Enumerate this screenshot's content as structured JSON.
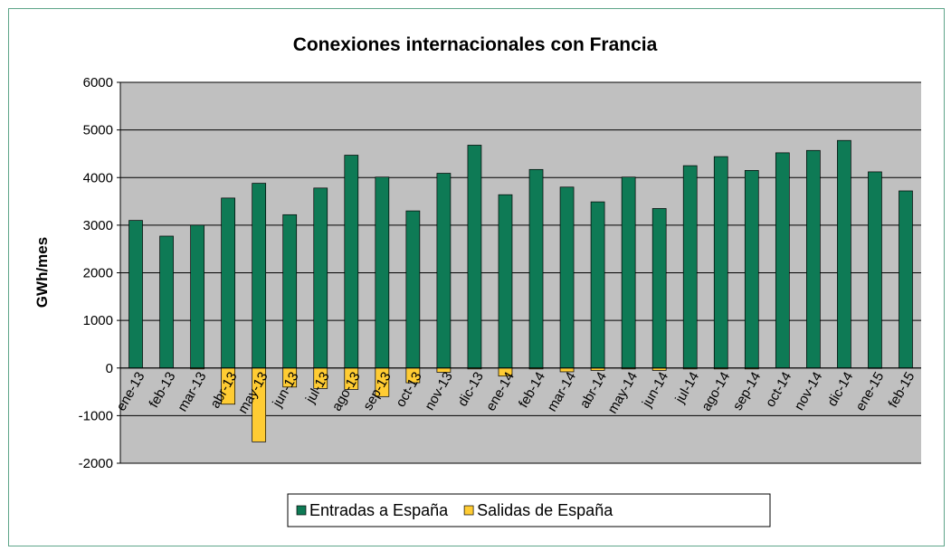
{
  "chart_data": {
    "type": "bar",
    "stacked": true,
    "title": "Conexiones internacionales con Francia",
    "y_label": "GWh/mes",
    "categories": [
      "ene-13",
      "feb-13",
      "mar-13",
      "abr-13",
      "may-13",
      "jun-13",
      "jul-13",
      "ago-13",
      "sep-13",
      "oct-13",
      "nov-13",
      "dic-13",
      "ene-14",
      "feb-14",
      "mar-14",
      "abr-14",
      "may-14",
      "jun-14",
      "jul-14",
      "ago-14",
      "sep-14",
      "oct-14",
      "nov-14",
      "dic-14",
      "ene-15",
      "feb-15"
    ],
    "series": [
      {
        "name": "Entradas a España",
        "color": "#0e7a55",
        "values": [
          3100,
          2770,
          3000,
          3570,
          3880,
          3220,
          3780,
          4470,
          4010,
          3300,
          4090,
          4680,
          3640,
          4170,
          3800,
          3490,
          4010,
          3350,
          4250,
          4440,
          4150,
          4520,
          4570,
          4780,
          4120,
          3720
        ]
      },
      {
        "name": "Salidas de España",
        "color": "#ffcc33",
        "values": [
          0,
          0,
          -20,
          -760,
          -1550,
          -400,
          -430,
          -450,
          -600,
          -310,
          -90,
          -20,
          -170,
          -20,
          -80,
          -50,
          -20,
          -50,
          -20,
          -20,
          -20,
          0,
          0,
          0,
          -10,
          0
        ]
      }
    ],
    "ylim": [
      -2000,
      6000
    ],
    "yticks": [
      -2000,
      -1000,
      0,
      1000,
      2000,
      3000,
      4000,
      5000,
      6000
    ],
    "grid": true,
    "legend": "bottom"
  }
}
